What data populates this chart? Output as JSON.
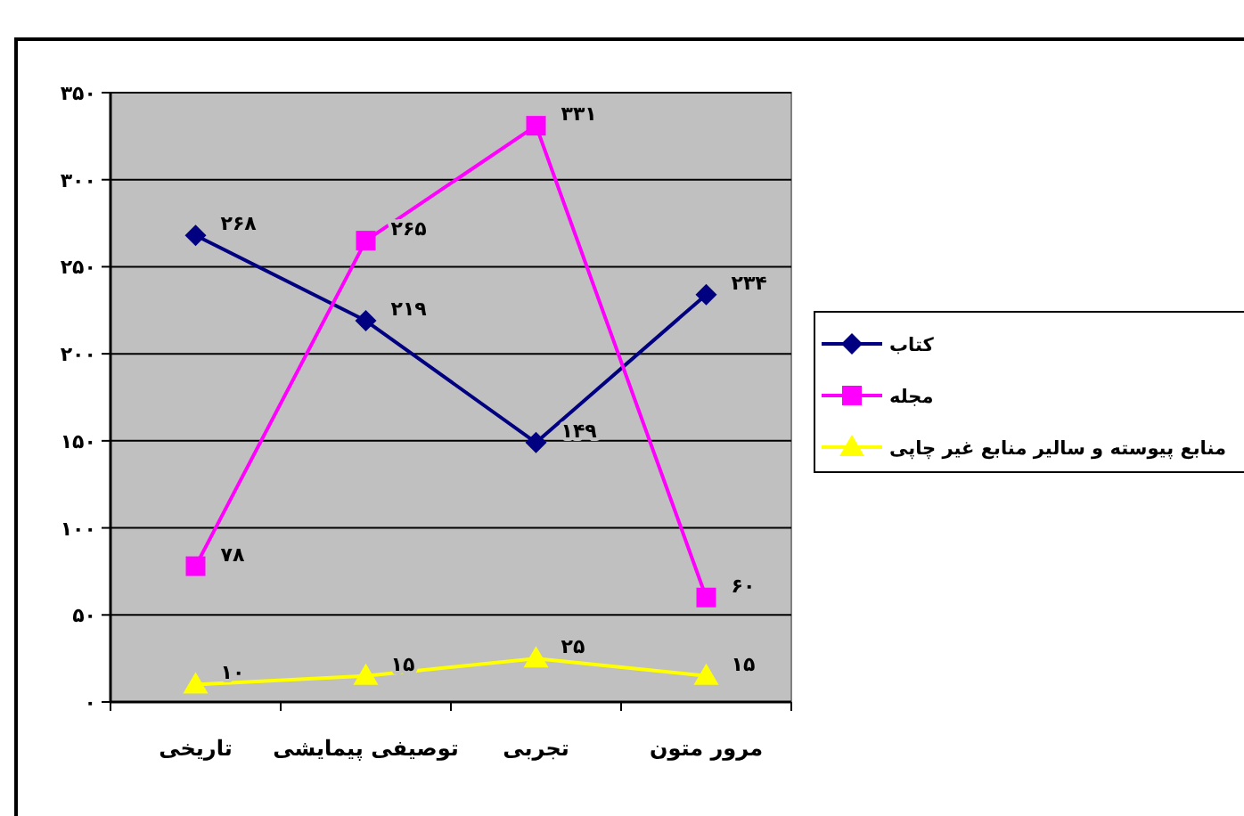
{
  "chart_data": {
    "type": "line",
    "categories": [
      "تاریخی",
      "توصیفی پیمایشی",
      "تجربی",
      "مرور متون"
    ],
    "ylim": [
      0,
      350
    ],
    "yticks": [
      {
        "value": 0,
        "label": "۰"
      },
      {
        "value": 50,
        "label": "۵۰"
      },
      {
        "value": 100,
        "label": "۱۰۰"
      },
      {
        "value": 150,
        "label": "۱۵۰"
      },
      {
        "value": 200,
        "label": "۲۰۰"
      },
      {
        "value": 250,
        "label": "۲۵۰"
      },
      {
        "value": 300,
        "label": "۳۰۰"
      },
      {
        "value": 350,
        "label": "۳۵۰"
      }
    ],
    "grid": "y",
    "legend": "right",
    "line_style": "solid",
    "series": [
      {
        "name": "کتاب",
        "color": "#000080",
        "marker": "diamond",
        "values": [
          268,
          219,
          149,
          234
        ],
        "value_labels": [
          "۲۶۸",
          "۲۱۹",
          "۱۴۹",
          "۲۳۴"
        ]
      },
      {
        "name": "مجله",
        "color": "#ff00ff",
        "marker": "square",
        "values": [
          78,
          265,
          331,
          60
        ],
        "value_labels": [
          "۷۸",
          "۲۶۵",
          "۳۳۱",
          "۶۰"
        ]
      },
      {
        "name": "منابع پیوسته و سالیر منابع غیر چاپی",
        "color": "#ffff00",
        "marker": "triangle",
        "values": [
          10,
          15,
          25,
          15
        ],
        "value_labels": [
          "۱۰",
          "۱۵",
          "۲۵",
          "۱۵"
        ]
      }
    ]
  }
}
